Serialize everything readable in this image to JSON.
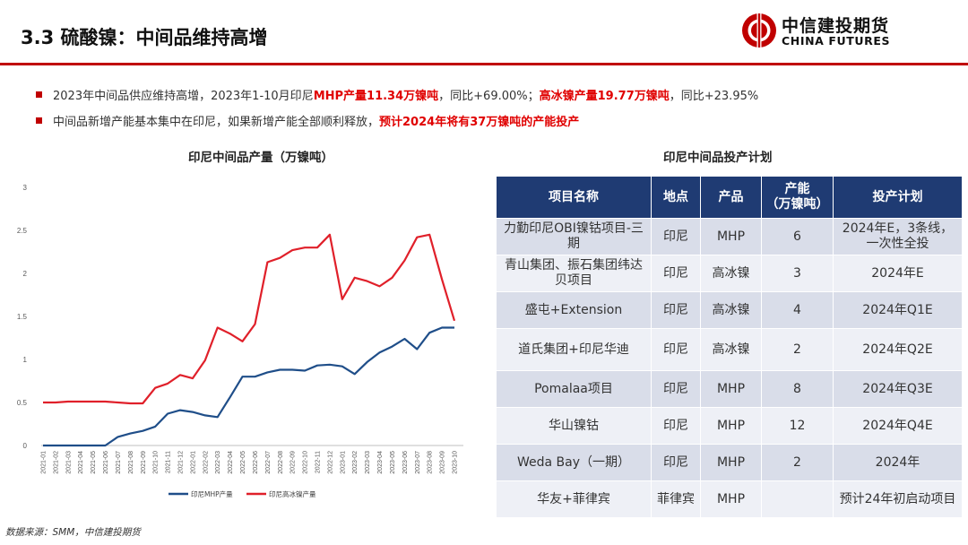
{
  "header": {
    "title": "3.3  硫酸镍：中间品维持高增",
    "logo_cn": "中信建投期货",
    "logo_en": "CHINA FUTURES",
    "brand_color": "#c00000"
  },
  "bullets": [
    {
      "pre": "2023年中间品供应维持高增，2023年1-10月印尼",
      "hl1": "MHP产量11.34万镍吨",
      "mid": "，同比+69.00%；",
      "hl2": "高冰镍产量19.77万镍吨",
      "post": "，同比+23.95%"
    },
    {
      "pre": "中间品新增产能基本集中在印尼，如果新增产能全部顺利释放，",
      "hl1": "预计2024年将有37万镍吨的产能投产"
    }
  ],
  "chart_title": "印尼中间品产量（万镍吨）",
  "chart_data": {
    "type": "line",
    "categories": [
      "2021-01",
      "2021-02",
      "2021-03",
      "2021-04",
      "2021-05",
      "2021-06",
      "2021-07",
      "2021-08",
      "2021-09",
      "2021-10",
      "2021-11",
      "2021-12",
      "2022-01",
      "2022-02",
      "2022-03",
      "2022-04",
      "2022-05",
      "2022-06",
      "2022-07",
      "2022-08",
      "2022-09",
      "2022-10",
      "2022-11",
      "2022-12",
      "2023-01",
      "2023-02",
      "2023-03",
      "2023-04",
      "2023-05",
      "2023-06",
      "2023-07",
      "2023-08",
      "2023-09",
      "2023-10"
    ],
    "series": [
      {
        "name": "印尼MHP产量",
        "color": "#1f4e89",
        "values": [
          0,
          0,
          0,
          0,
          0,
          0,
          0.1,
          0.14,
          0.17,
          0.22,
          0.37,
          0.41,
          0.39,
          0.35,
          0.33,
          0.56,
          0.8,
          0.8,
          0.85,
          0.88,
          0.88,
          0.87,
          0.93,
          0.94,
          0.92,
          0.83,
          0.97,
          1.08,
          1.15,
          1.24,
          1.12,
          1.31,
          1.37,
          1.37
        ]
      },
      {
        "name": "印尼高冰镍产量",
        "color": "#e0202a",
        "values": [
          0.5,
          0.5,
          0.51,
          0.51,
          0.51,
          0.51,
          0.5,
          0.49,
          0.49,
          0.67,
          0.72,
          0.82,
          0.78,
          0.99,
          1.37,
          1.3,
          1.21,
          1.41,
          2.13,
          2.18,
          2.27,
          2.3,
          2.3,
          2.45,
          1.7,
          1.95,
          1.91,
          1.85,
          1.95,
          2.15,
          2.42,
          2.45,
          1.93,
          1.45
        ]
      }
    ],
    "ylim": [
      0,
      3
    ],
    "yticks": [
      "0",
      "0.5",
      "1",
      "1.5",
      "2",
      "2.5",
      "3"
    ],
    "grid": false,
    "legend": "bottom"
  },
  "table_title": "印尼中间品投产计划",
  "table": {
    "header_color": "#1f3b73",
    "headers": [
      "项目名称",
      "地点",
      "产品",
      "产能\n（万镍吨）",
      "投产计划"
    ],
    "rows": [
      [
        "力勤印尼OBI镍钴项目-三期",
        "印尼",
        "MHP",
        "6",
        "2024年E，3条线，一次性全投"
      ],
      [
        "青山集团、振石集团纬达贝项目",
        "印尼",
        "高冰镍",
        "3",
        "2024年E"
      ],
      [
        "盛屯+Extension",
        "印尼",
        "高冰镍",
        "4",
        "2024年Q1E"
      ],
      [
        "道氏集团+印尼华迪",
        "印尼",
        "高冰镍",
        "2",
        "2024年Q2E"
      ],
      [
        "Pomalaa项目",
        "印尼",
        "MHP",
        "8",
        "2024年Q3E"
      ],
      [
        "华山镍钴",
        "印尼",
        "MHP",
        "12",
        "2024年Q4E"
      ],
      [
        "Weda Bay（一期）",
        "印尼",
        "MHP",
        "2",
        "2024年"
      ],
      [
        "华友+菲律宾",
        "菲律宾",
        "MHP",
        "",
        "预计24年初启动项目"
      ]
    ]
  },
  "source": "数据来源：SMM，中信建投期货"
}
